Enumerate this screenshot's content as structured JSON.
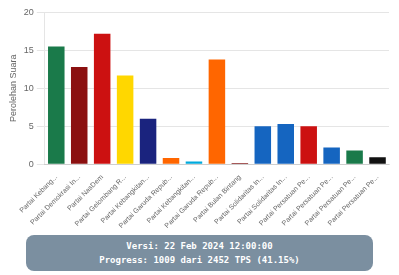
{
  "chart_data": {
    "type": "bar",
    "categories": [
      "Partai Kebang...",
      "Partai Demokrasi In...",
      "Partai NasDem",
      "Partai Gelombang R...",
      "Partai Kebangkitan...",
      "Partai Garuda Repub...",
      "Partai Kebangkitan...",
      "Partai Garuda Repub...",
      "Partai Bulan Bintang",
      "Partai Solidaritas In...",
      "Partai Solidaritas In...",
      "Partai Persatuan Pe...",
      "Partai Persatuan Pe...",
      "Partai Persatuan Pe...",
      "Partai Persatuan Pe..."
    ],
    "values": [
      15.5,
      12.8,
      17.2,
      11.7,
      6.0,
      0.8,
      0.35,
      13.8,
      0.15,
      5.0,
      5.3,
      5.0,
      2.2,
      1.8,
      0.9
    ],
    "colors": [
      "#1a7a4a",
      "#8B1010",
      "#CC1111",
      "#FFD700",
      "#1A237E",
      "#FF6600",
      "#00AADD",
      "#FF6600",
      "#882222",
      "#1565C0",
      "#1565C0",
      "#CC1111",
      "#1565C0",
      "#1a7a4a",
      "#111111"
    ],
    "ylabel": "Perolehan Suara",
    "ylim": [
      0,
      20
    ],
    "yticks": [
      0,
      5,
      10,
      15,
      20
    ],
    "grid": true,
    "annotations": [
      "Versi: 22 Feb 2024 12:00:00",
      "Progress: 1009 dari 2452 TPS (41.15%)"
    ]
  }
}
